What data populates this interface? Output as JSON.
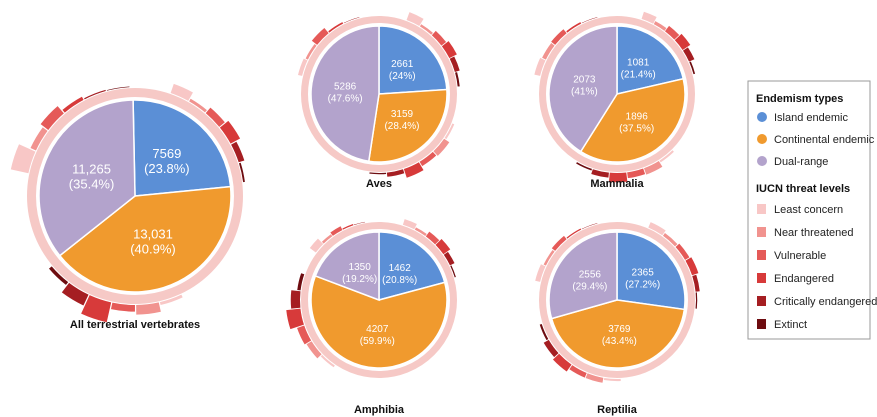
{
  "colors": {
    "island": "#5b8fd6",
    "continental": "#f09a2e",
    "dual": "#b3a3cc",
    "ring": "#f6c9c6",
    "iucn": [
      "#f8c7c6",
      "#f1938f",
      "#e55a58",
      "#d73a3a",
      "#a51e22",
      "#6e0c10"
    ]
  },
  "legend": {
    "endemism_title": "Endemism types",
    "endemism_items": [
      {
        "label": "Island endemic",
        "color": "#5b8fd6"
      },
      {
        "label": "Continental endemic",
        "color": "#f09a2e"
      },
      {
        "label": "Dual-range",
        "color": "#b3a3cc"
      }
    ],
    "iucn_title": "IUCN threat levels",
    "iucn_items": [
      {
        "label": "Least concern",
        "color": "#f8c7c6"
      },
      {
        "label": "Near threatened",
        "color": "#f1938f"
      },
      {
        "label": "Vulnerable",
        "color": "#e55a58"
      },
      {
        "label": "Endangered",
        "color": "#d73a3a"
      },
      {
        "label": "Critically endangered",
        "color": "#a51e22"
      },
      {
        "label": "Extinct",
        "color": "#6e0c10"
      }
    ]
  },
  "chart_data": [
    {
      "type": "pie",
      "title": "All terrestrial vertebrates",
      "series": [
        {
          "name": "Island endemic",
          "value": 7569,
          "label": "7569",
          "percent": "(23.8%)"
        },
        {
          "name": "Continental endemic",
          "value": 13031,
          "label": "13,031",
          "percent": "(40.9%)"
        },
        {
          "name": "Dual-range",
          "value": 11265,
          "label": "11,265",
          "percent": "(35.4%)"
        }
      ],
      "threat_bars": [
        [
          0.16,
          0.05,
          0.12,
          0.18,
          0.1,
          0.03
        ],
        [
          0.05,
          0.16,
          0.11,
          0.34,
          0.2,
          0.06
        ],
        [
          0.3,
          0.1,
          0.16,
          0.06,
          0.02,
          0.01
        ]
      ]
    },
    {
      "type": "pie",
      "title": "Aves",
      "series": [
        {
          "name": "Island endemic",
          "value": 2661,
          "label": "2661",
          "percent": "(24%)"
        },
        {
          "name": "Continental endemic",
          "value": 3159,
          "label": "3159",
          "percent": "(28.4%)"
        },
        {
          "name": "Dual-range",
          "value": 5286,
          "label": "5286",
          "percent": "(47.6%)"
        }
      ],
      "threat_bars": [
        [
          0.2,
          0.06,
          0.14,
          0.2,
          0.12,
          0.05
        ],
        [
          0.05,
          0.15,
          0.12,
          0.22,
          0.1,
          0.03
        ],
        [
          0.1,
          0.06,
          0.16,
          0.04,
          0.01,
          0.0
        ]
      ]
    },
    {
      "type": "pie",
      "title": "Mammalia",
      "series": [
        {
          "name": "Island endemic",
          "value": 1081,
          "label": "1081",
          "percent": "(21.4%)"
        },
        {
          "name": "Continental endemic",
          "value": 1896,
          "label": "1896",
          "percent": "(37.5%)"
        },
        {
          "name": "Dual-range",
          "value": 2073,
          "label": "2073",
          "percent": "(41%)"
        }
      ],
      "threat_bars": [
        [
          0.18,
          0.08,
          0.16,
          0.22,
          0.14,
          0.04
        ],
        [
          0.05,
          0.16,
          0.14,
          0.22,
          0.12,
          0.04
        ],
        [
          0.14,
          0.1,
          0.12,
          0.04,
          0.01,
          0.0
        ]
      ]
    },
    {
      "type": "pie",
      "title": "Amphibia",
      "series": [
        {
          "name": "Island endemic",
          "value": 1462,
          "label": "1462",
          "percent": "(20.8%)"
        },
        {
          "name": "Continental endemic",
          "value": 4207,
          "label": "4207",
          "percent": "(59.9%)"
        },
        {
          "name": "Dual-range",
          "value": 1350,
          "label": "1350",
          "percent": "(19.2%)"
        }
      ],
      "threat_bars": [
        [
          0.14,
          0.06,
          0.14,
          0.2,
          0.12,
          0.03
        ],
        [
          0.05,
          0.14,
          0.18,
          0.34,
          0.22,
          0.08
        ],
        [
          0.18,
          0.06,
          0.1,
          0.03,
          0.01,
          0.0
        ]
      ]
    },
    {
      "type": "pie",
      "title": "Reptilia",
      "series": [
        {
          "name": "Island endemic",
          "value": 2365,
          "label": "2365",
          "percent": "(27.2%)"
        },
        {
          "name": "Continental endemic",
          "value": 3769,
          "label": "3769",
          "percent": "(43.4%)"
        },
        {
          "name": "Dual-range",
          "value": 2556,
          "label": "2556",
          "percent": "(29.4%)"
        }
      ],
      "threat_bars": [
        [
          0.14,
          0.08,
          0.12,
          0.16,
          0.1,
          0.03
        ],
        [
          0.05,
          0.12,
          0.12,
          0.2,
          0.14,
          0.05
        ],
        [
          0.12,
          0.06,
          0.1,
          0.03,
          0.01,
          0.0
        ]
      ]
    }
  ]
}
